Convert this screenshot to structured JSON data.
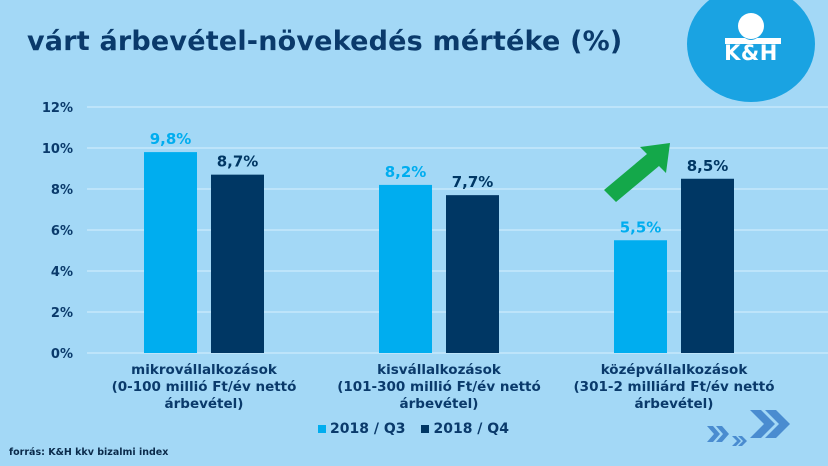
{
  "header": {
    "title": "várt árbevétel-növekedés mértéke (%)",
    "logo_text": "K&H"
  },
  "colors": {
    "background": "#a3d8f6",
    "q3": "#00adef",
    "q4": "#003764",
    "text": "#0a3a6b",
    "arrow": "#14a84a",
    "logo": "#1aa3e2",
    "chevron": "#4a8cd0"
  },
  "chart_data": {
    "type": "bar",
    "title": "várt árbevétel-növekedés mértéke (%)",
    "xlabel": "",
    "ylabel": "",
    "ylim": [
      0,
      12
    ],
    "yticks": [
      0,
      2,
      4,
      6,
      8,
      10,
      12
    ],
    "ytick_labels": [
      "0%",
      "2%",
      "4%",
      "6%",
      "8%",
      "10%",
      "12%"
    ],
    "grid": true,
    "legend_position": "bottom",
    "categories": [
      [
        "mikrovállalkozások",
        "(0-100 millió Ft/év nettó",
        "árbevétel)"
      ],
      [
        "kisvállalkozások",
        "(101-300 millió Ft/év nettó",
        "árbevétel)"
      ],
      [
        "középvállalkozások",
        "(301-2 milliárd Ft/év nettó",
        "árbevétel)"
      ]
    ],
    "series": [
      {
        "name": "2018 / Q3",
        "values": [
          9.8,
          8.2,
          5.5
        ],
        "labels": [
          "9,8%",
          "8,2%",
          "5,5%"
        ]
      },
      {
        "name": "2018 / Q4",
        "values": [
          8.7,
          7.7,
          8.5
        ],
        "labels": [
          "8,7%",
          "7,7%",
          "8,5%"
        ]
      }
    ],
    "annotations": [
      {
        "type": "arrow",
        "direction": "up-right",
        "category": "középvállalkozások",
        "meaning": "increase from Q3 to Q4"
      }
    ]
  },
  "footer": {
    "source": "forrás: K&H kkv bizalmi index"
  }
}
